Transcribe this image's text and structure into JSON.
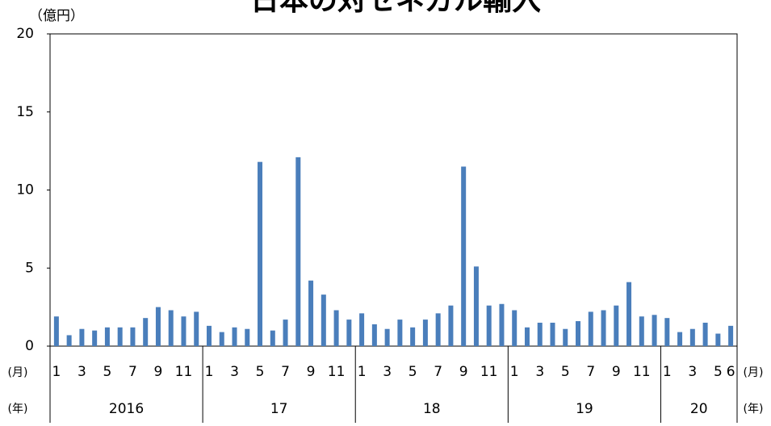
{
  "chart_data": {
    "type": "bar",
    "title": "日本の対セネガル輸入",
    "y_unit": "（億円）",
    "x_label_month": "(月)",
    "x_label_year": "(年)",
    "categories": [
      1,
      null,
      3,
      null,
      5,
      null,
      7,
      null,
      9,
      null,
      11,
      null,
      1,
      null,
      3,
      null,
      5,
      null,
      7,
      null,
      9,
      null,
      11,
      null,
      1,
      null,
      3,
      null,
      5,
      null,
      7,
      null,
      9,
      null,
      11,
      null,
      1,
      null,
      3,
      null,
      5,
      null,
      7,
      null,
      9,
      null,
      11,
      null,
      1,
      null,
      3,
      null,
      5,
      6
    ],
    "year_groups": [
      "2016",
      "17",
      "18",
      "19",
      "20"
    ],
    "values": [
      1.9,
      0.7,
      1.1,
      1.0,
      1.2,
      1.2,
      1.2,
      1.8,
      2.5,
      2.3,
      1.9,
      2.2,
      1.3,
      0.9,
      1.2,
      1.1,
      11.8,
      1.0,
      1.7,
      12.1,
      4.2,
      3.3,
      2.3,
      1.7,
      2.1,
      1.4,
      1.1,
      1.7,
      1.2,
      1.7,
      2.1,
      2.6,
      11.5,
      5.1,
      2.6,
      2.7,
      2.3,
      1.2,
      1.5,
      1.5,
      1.1,
      1.6,
      2.2,
      2.3,
      2.6,
      4.1,
      1.9,
      2.0,
      1.8,
      0.9,
      1.1,
      1.5,
      0.8,
      1.3
    ],
    "color": "#4a7ebb",
    "ylim": [
      0,
      20
    ],
    "yticks": [
      0,
      5,
      10,
      15,
      20
    ],
    "grid": false
  }
}
